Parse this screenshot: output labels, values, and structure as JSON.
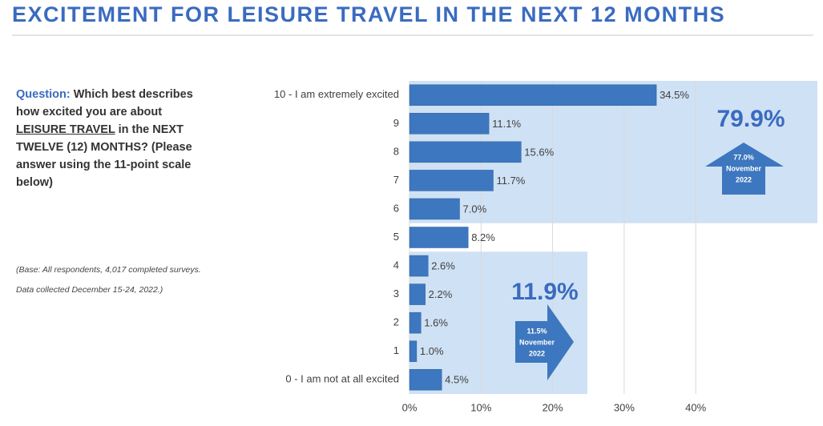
{
  "header": {
    "title": "EXCITEMENT FOR LEISURE TRAVEL IN THE NEXT 12 MONTHS"
  },
  "question": {
    "label": "Question:",
    "text_1": "Which best describes how excited you are about",
    "emphasis": "LEISURE TRAVEL",
    "text_2": "in the NEXT TWELVE (12) MONTHS? (Please answer using the 11-point scale below)"
  },
  "base_note": {
    "line_1": "(Base: All respondents, 4,017 completed surveys.",
    "line_2": "Data collected December 15-24, 2022.)"
  },
  "callouts": [
    {
      "total": "79.9%",
      "previous": "77.0%",
      "previous_month": "November",
      "previous_year": "2022"
    },
    {
      "total": "11.9%",
      "previous": "11.5%",
      "previous_month": "November",
      "previous_year": "2022"
    }
  ],
  "chart_data": {
    "type": "hbar",
    "categories": [
      "10 - I am extremely excited",
      "9",
      "8",
      "7",
      "6",
      "5",
      "4",
      "3",
      "2",
      "1",
      "0 - I am not at all excited"
    ],
    "values": [
      34.5,
      11.1,
      15.6,
      11.7,
      7.0,
      8.2,
      2.6,
      2.2,
      1.6,
      1.0,
      4.5
    ],
    "value_labels": [
      "34.5%",
      "11.1%",
      "15.6%",
      "11.7%",
      "7.0%",
      "8.2%",
      "2.6%",
      "2.2%",
      "1.6%",
      "1.0%",
      "4.5%"
    ],
    "color": "#3d77bf",
    "xlim": [
      0,
      57
    ],
    "xticks": [
      {
        "value": 0,
        "label": "0%"
      },
      {
        "value": 10,
        "label": "10%"
      },
      {
        "value": 20,
        "label": "20%"
      },
      {
        "value": 30,
        "label": "30%"
      },
      {
        "value": 40,
        "label": "40%"
      }
    ],
    "grid": true
  }
}
